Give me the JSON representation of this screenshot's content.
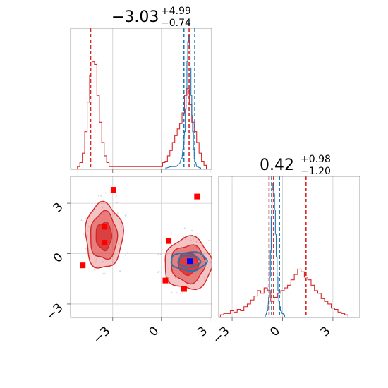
{
  "colors": {
    "red": "#d62728",
    "blue": "#1f77b4",
    "marker_red": "#ff0000",
    "marker_blue": "#0000ff",
    "grid": "#cccccc"
  },
  "chart_data": [
    {
      "panel": "top-left",
      "type": "histogram",
      "title": {
        "value": "−3.03",
        "sup": "+4.99",
        "sub": "−0.74"
      },
      "xlim": [
        -5.6,
        3.1
      ],
      "xticks": [
        -3,
        0,
        3
      ],
      "xticklabels": [
        "",
        "",
        ""
      ],
      "quantile_lines": {
        "red": [
          -4.36,
          1.71
        ],
        "blue": [
          1.39,
          2.06
        ]
      },
      "series": [
        {
          "color": "red",
          "bin_width": 0.15,
          "bins": [
            [
              -5.1,
              0.02
            ],
            [
              -4.95,
              0.05
            ],
            [
              -4.8,
              0.12
            ],
            [
              -4.65,
              0.28
            ],
            [
              -4.5,
              0.5
            ],
            [
              -4.35,
              0.7
            ],
            [
              -4.2,
              0.8
            ],
            [
              -4.05,
              0.78
            ],
            [
              -3.9,
              0.55
            ],
            [
              -3.75,
              0.35
            ],
            [
              -3.6,
              0.2
            ],
            [
              -3.45,
              0.1
            ],
            [
              -3.3,
              0.05
            ],
            [
              -3.15,
              0.02
            ],
            [
              0.0,
              0.02
            ],
            [
              0.15,
              0.05
            ],
            [
              0.3,
              0.06
            ],
            [
              0.45,
              0.1
            ],
            [
              0.6,
              0.14
            ],
            [
              0.75,
              0.2
            ],
            [
              0.9,
              0.25
            ],
            [
              1.05,
              0.3
            ],
            [
              1.2,
              0.34
            ],
            [
              1.35,
              0.42
            ],
            [
              1.5,
              0.55
            ],
            [
              1.65,
              0.6
            ],
            [
              1.8,
              0.48
            ],
            [
              1.95,
              0.35
            ],
            [
              2.1,
              0.28
            ],
            [
              2.25,
              0.2
            ],
            [
              2.4,
              0.12
            ],
            [
              2.55,
              0.06
            ],
            [
              2.7,
              0.03
            ]
          ]
        },
        {
          "color": "blue",
          "bin_width": 0.05,
          "bins": [
            [
              0.3,
              0.01
            ],
            [
              0.6,
              0.02
            ],
            [
              0.9,
              0.02
            ],
            [
              1.1,
              0.04
            ],
            [
              1.25,
              0.08
            ],
            [
              1.35,
              0.15
            ],
            [
              1.45,
              0.28
            ],
            [
              1.5,
              0.45
            ],
            [
              1.55,
              0.6
            ],
            [
              1.6,
              0.8
            ],
            [
              1.65,
              0.95
            ],
            [
              1.7,
              1.0
            ],
            [
              1.75,
              0.9
            ],
            [
              1.8,
              0.75
            ],
            [
              1.85,
              0.55
            ],
            [
              1.9,
              0.4
            ],
            [
              1.95,
              0.28
            ],
            [
              2.0,
              0.15
            ],
            [
              2.05,
              0.08
            ],
            [
              2.1,
              0.05
            ],
            [
              2.2,
              0.02
            ],
            [
              2.4,
              0.01
            ]
          ]
        }
      ]
    },
    {
      "panel": "bottom-left",
      "type": "scatter",
      "xlim": [
        -5.6,
        3.1
      ],
      "ylim": [
        -3.8,
        4.6
      ],
      "xticks": [
        -3,
        0,
        3
      ],
      "xticklabels": [
        "−3",
        "0",
        "3"
      ],
      "yticks": [
        -3,
        0,
        3
      ],
      "yticklabels": [
        "−3",
        "0",
        "3"
      ],
      "contours": [
        {
          "color": "red",
          "center": [
            -3.55,
            1.05
          ],
          "rx": 1.15,
          "ry": 1.95,
          "levels": [
            1.0,
            0.72,
            0.42
          ]
        },
        {
          "color": "red",
          "center": [
            1.65,
            -0.6
          ],
          "rx": 1.45,
          "ry": 1.55,
          "levels": [
            1.0,
            0.72,
            0.42
          ]
        },
        {
          "color": "blue",
          "center": [
            1.7,
            -0.45
          ],
          "rx": 1.1,
          "ry": 0.55,
          "levels": [
            1.0,
            0.62
          ]
        }
      ],
      "markers_red": [
        [
          -2.95,
          3.8
        ],
        [
          2.2,
          3.4
        ],
        [
          -3.5,
          1.6
        ],
        [
          -3.5,
          0.65
        ],
        [
          0.45,
          0.75
        ],
        [
          -4.85,
          -0.7
        ],
        [
          0.25,
          -1.6
        ],
        [
          1.4,
          -2.1
        ]
      ],
      "marker_blue": [
        1.75,
        -0.45
      ]
    },
    {
      "panel": "bottom-right",
      "type": "histogram",
      "title": {
        "value": "0.42",
        "sup": "+0.98",
        "sub": "−1.20"
      },
      "xlim": [
        -3.8,
        4.6
      ],
      "xticks": [
        -3,
        0,
        3
      ],
      "xticklabels": [
        "−3",
        "0",
        "3"
      ],
      "quantile_lines": {
        "red": [
          -0.8,
          -0.53,
          1.4
        ],
        "blue": [
          -0.65,
          -0.18
        ]
      },
      "series": [
        {
          "color": "red",
          "bin_width": 0.2,
          "bins": [
            [
              -3.6,
              0.02
            ],
            [
              -3.4,
              0.03
            ],
            [
              -3.2,
              0.03
            ],
            [
              -3.0,
              0.05
            ],
            [
              -2.8,
              0.04
            ],
            [
              -2.6,
              0.06
            ],
            [
              -2.4,
              0.05
            ],
            [
              -2.2,
              0.08
            ],
            [
              -2.0,
              0.1
            ],
            [
              -1.8,
              0.13
            ],
            [
              -1.6,
              0.16
            ],
            [
              -1.4,
              0.2
            ],
            [
              -1.2,
              0.18
            ],
            [
              -1.0,
              0.22
            ],
            [
              -0.8,
              0.2
            ],
            [
              -0.6,
              0.12
            ],
            [
              -0.4,
              0.15
            ],
            [
              -0.2,
              0.18
            ],
            [
              0.0,
              0.2
            ],
            [
              0.2,
              0.22
            ],
            [
              0.4,
              0.24
            ],
            [
              0.6,
              0.28
            ],
            [
              0.8,
              0.32
            ],
            [
              1.0,
              0.36
            ],
            [
              1.2,
              0.34
            ],
            [
              1.4,
              0.3
            ],
            [
              1.6,
              0.28
            ],
            [
              1.8,
              0.24
            ],
            [
              2.0,
              0.2
            ],
            [
              2.2,
              0.18
            ],
            [
              2.4,
              0.14
            ],
            [
              2.6,
              0.12
            ],
            [
              2.8,
              0.1
            ],
            [
              3.0,
              0.07
            ],
            [
              3.2,
              0.06
            ],
            [
              3.4,
              0.04
            ],
            [
              3.6,
              0.03
            ],
            [
              3.8,
              0.02
            ]
          ]
        },
        {
          "color": "blue",
          "bin_width": 0.05,
          "bins": [
            [
              -1.0,
              0.02
            ],
            [
              -0.9,
              0.05
            ],
            [
              -0.8,
              0.15
            ],
            [
              -0.75,
              0.3
            ],
            [
              -0.7,
              0.5
            ],
            [
              -0.65,
              0.75
            ],
            [
              -0.6,
              0.95
            ],
            [
              -0.55,
              1.0
            ],
            [
              -0.5,
              0.92
            ],
            [
              -0.45,
              0.8
            ],
            [
              -0.4,
              0.62
            ],
            [
              -0.35,
              0.45
            ],
            [
              -0.3,
              0.3
            ],
            [
              -0.25,
              0.2
            ],
            [
              -0.2,
              0.12
            ],
            [
              -0.15,
              0.08
            ],
            [
              -0.1,
              0.05
            ],
            [
              0.0,
              0.03
            ],
            [
              0.1,
              0.02
            ]
          ]
        }
      ]
    }
  ]
}
